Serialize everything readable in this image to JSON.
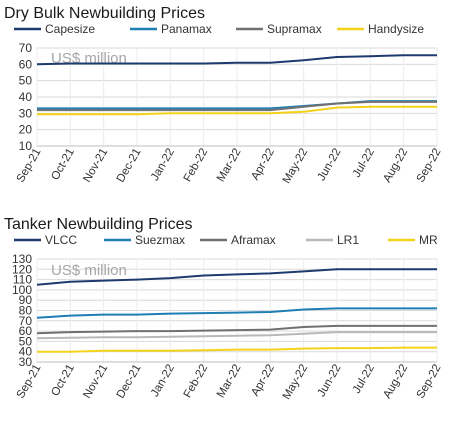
{
  "chart_data": [
    {
      "type": "line",
      "title": "Dry Bulk Newbuilding Prices",
      "unit_label": "US$ million",
      "x": [
        "Sep-21",
        "Oct-21",
        "Nov-21",
        "Dec-21",
        "Jan-22",
        "Feb-22",
        "Mar-22",
        "Apr-22",
        "May-22",
        "Jun-22",
        "Jul-22",
        "Aug-22",
        "Sep-22"
      ],
      "ylim": [
        10,
        70
      ],
      "yticks": [
        10,
        20,
        30,
        40,
        50,
        60,
        70
      ],
      "grid": true,
      "legend": "top",
      "series": [
        {
          "name": "Capesize",
          "color": "#1f3a6e",
          "values": [
            60,
            60.5,
            60.5,
            60.5,
            60.5,
            60.5,
            61,
            61,
            62.5,
            64.5,
            65,
            65.5,
            65.5
          ]
        },
        {
          "name": "Panamax",
          "color": "#1f7fb4",
          "values": [
            33,
            33,
            33,
            33,
            33,
            33,
            33,
            33,
            34.5,
            36,
            37.5,
            37.5,
            37.5
          ]
        },
        {
          "name": "Supramax",
          "color": "#707070",
          "values": [
            32,
            32,
            32,
            32,
            32,
            32,
            32,
            32,
            34,
            36,
            37,
            37,
            37
          ]
        },
        {
          "name": "Handysize",
          "color": "#f2d21b",
          "values": [
            29.5,
            29.5,
            29.5,
            29.5,
            30,
            30,
            30,
            30,
            31,
            33.5,
            34,
            34,
            34
          ]
        }
      ]
    },
    {
      "type": "line",
      "title": "Tanker Newbuilding Prices",
      "unit_label": "US$ million",
      "x": [
        "Sep-21",
        "Oct-21",
        "Nov-21",
        "Dec-21",
        "Jan-22",
        "Feb-22",
        "Mar-22",
        "Apr-22",
        "May-22",
        "Jun-22",
        "Jul-22",
        "Aug-22",
        "Sep-22"
      ],
      "ylim": [
        30,
        130
      ],
      "yticks": [
        30,
        40,
        50,
        60,
        70,
        80,
        90,
        100,
        110,
        120,
        130
      ],
      "grid": true,
      "legend": "top",
      "series": [
        {
          "name": "VLCC",
          "color": "#1f3a6e",
          "values": [
            105,
            108,
            109,
            110,
            111.5,
            114,
            115,
            116,
            118,
            120,
            120,
            120,
            120
          ]
        },
        {
          "name": "Suezmax",
          "color": "#1f7fb4",
          "values": [
            73,
            75,
            76,
            76,
            77,
            77.5,
            78,
            78.5,
            81,
            82,
            82,
            82,
            82
          ]
        },
        {
          "name": "Aframax",
          "color": "#707070",
          "values": [
            58,
            59,
            59.5,
            60,
            60,
            60.5,
            61,
            61.5,
            64,
            65,
            65,
            65,
            65
          ]
        },
        {
          "name": "LR1",
          "color": "#b8b8b8",
          "values": [
            53,
            53.5,
            54,
            54,
            54.5,
            55,
            55.5,
            56,
            57.5,
            59,
            59,
            59,
            59
          ]
        },
        {
          "name": "MR",
          "color": "#f2d21b",
          "values": [
            40,
            40,
            41,
            41,
            41,
            41.5,
            42,
            42,
            43,
            43.5,
            43.5,
            44,
            44
          ]
        }
      ]
    }
  ]
}
